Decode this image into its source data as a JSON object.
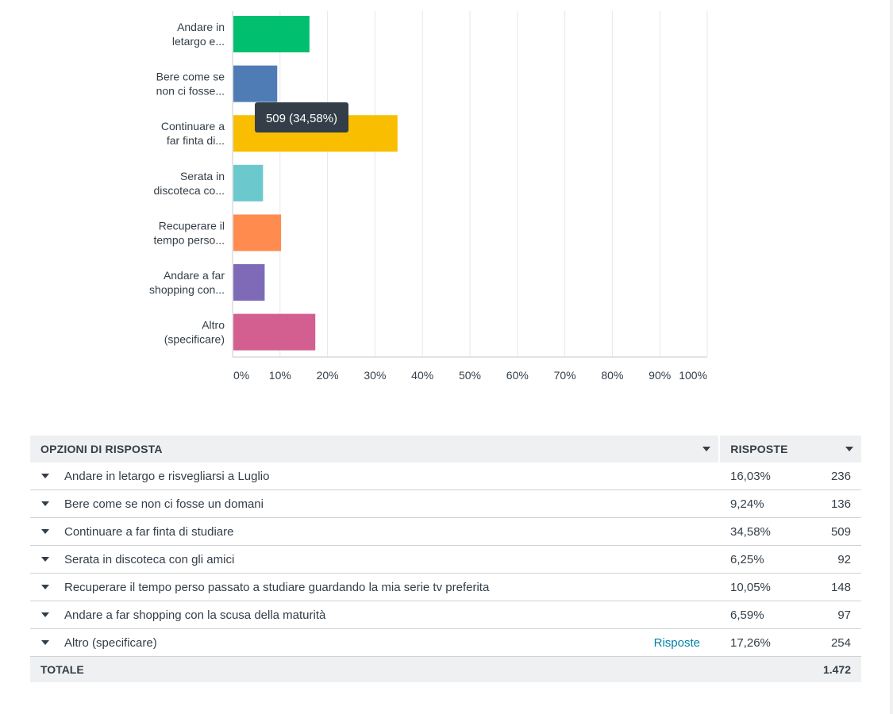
{
  "chart_data": {
    "type": "bar",
    "orientation": "horizontal",
    "categories": [
      "Andare in letargo e...",
      "Bere come se non ci fosse...",
      "Continuare a far finta di...",
      "Serata in discoteca co...",
      "Recuperare il tempo perso...",
      "Andare a far shopping con...",
      "Altro (specificare)"
    ],
    "category_lines": [
      [
        "Andare in",
        "letargo e..."
      ],
      [
        "Bere come se",
        "non ci fosse..."
      ],
      [
        "Continuare a",
        "far finta di..."
      ],
      [
        "Serata in",
        "discoteca co..."
      ],
      [
        "Recuperare il",
        "tempo perso..."
      ],
      [
        "Andare a far",
        "shopping con..."
      ],
      [
        "Altro",
        "(specificare)"
      ]
    ],
    "values": [
      16.03,
      9.24,
      34.58,
      6.25,
      10.05,
      6.59,
      17.26
    ],
    "colors": [
      "#00bf6f",
      "#507cb6",
      "#f9be00",
      "#6bc8cd",
      "#ff8b4f",
      "#7f6ab7",
      "#d25f90"
    ],
    "xlim": [
      0,
      100
    ],
    "ticks": [
      "0%",
      "10%",
      "20%",
      "30%",
      "40%",
      "50%",
      "60%",
      "70%",
      "80%",
      "90%",
      "100%"
    ],
    "grid": true,
    "tooltip": {
      "category_index": 2,
      "text": "509 (34,58%)"
    }
  },
  "table": {
    "header": {
      "option": "OPZIONI DI RISPOSTA",
      "responses": "RISPOSTE"
    },
    "rows": [
      {
        "label": "Andare in letargo e risvegliarsi a Luglio",
        "pct": "16,03%",
        "count": "236",
        "link": ""
      },
      {
        "label": "Bere come se non ci fosse un domani",
        "pct": "9,24%",
        "count": "136",
        "link": ""
      },
      {
        "label": "Continuare a far finta di studiare",
        "pct": "34,58%",
        "count": "509",
        "link": ""
      },
      {
        "label": "Serata in discoteca con gli amici",
        "pct": "6,25%",
        "count": "92",
        "link": ""
      },
      {
        "label": "Recuperare il tempo perso passato a studiare guardando la mia serie tv preferita",
        "pct": "10,05%",
        "count": "148",
        "link": ""
      },
      {
        "label": "Andare a far shopping con la scusa della maturità",
        "pct": "6,59%",
        "count": "97",
        "link": ""
      },
      {
        "label": "Altro (specificare)",
        "pct": "17,26%",
        "count": "254",
        "link": "Risposte"
      }
    ],
    "total": {
      "label": "TOTALE",
      "count": "1.472"
    }
  }
}
